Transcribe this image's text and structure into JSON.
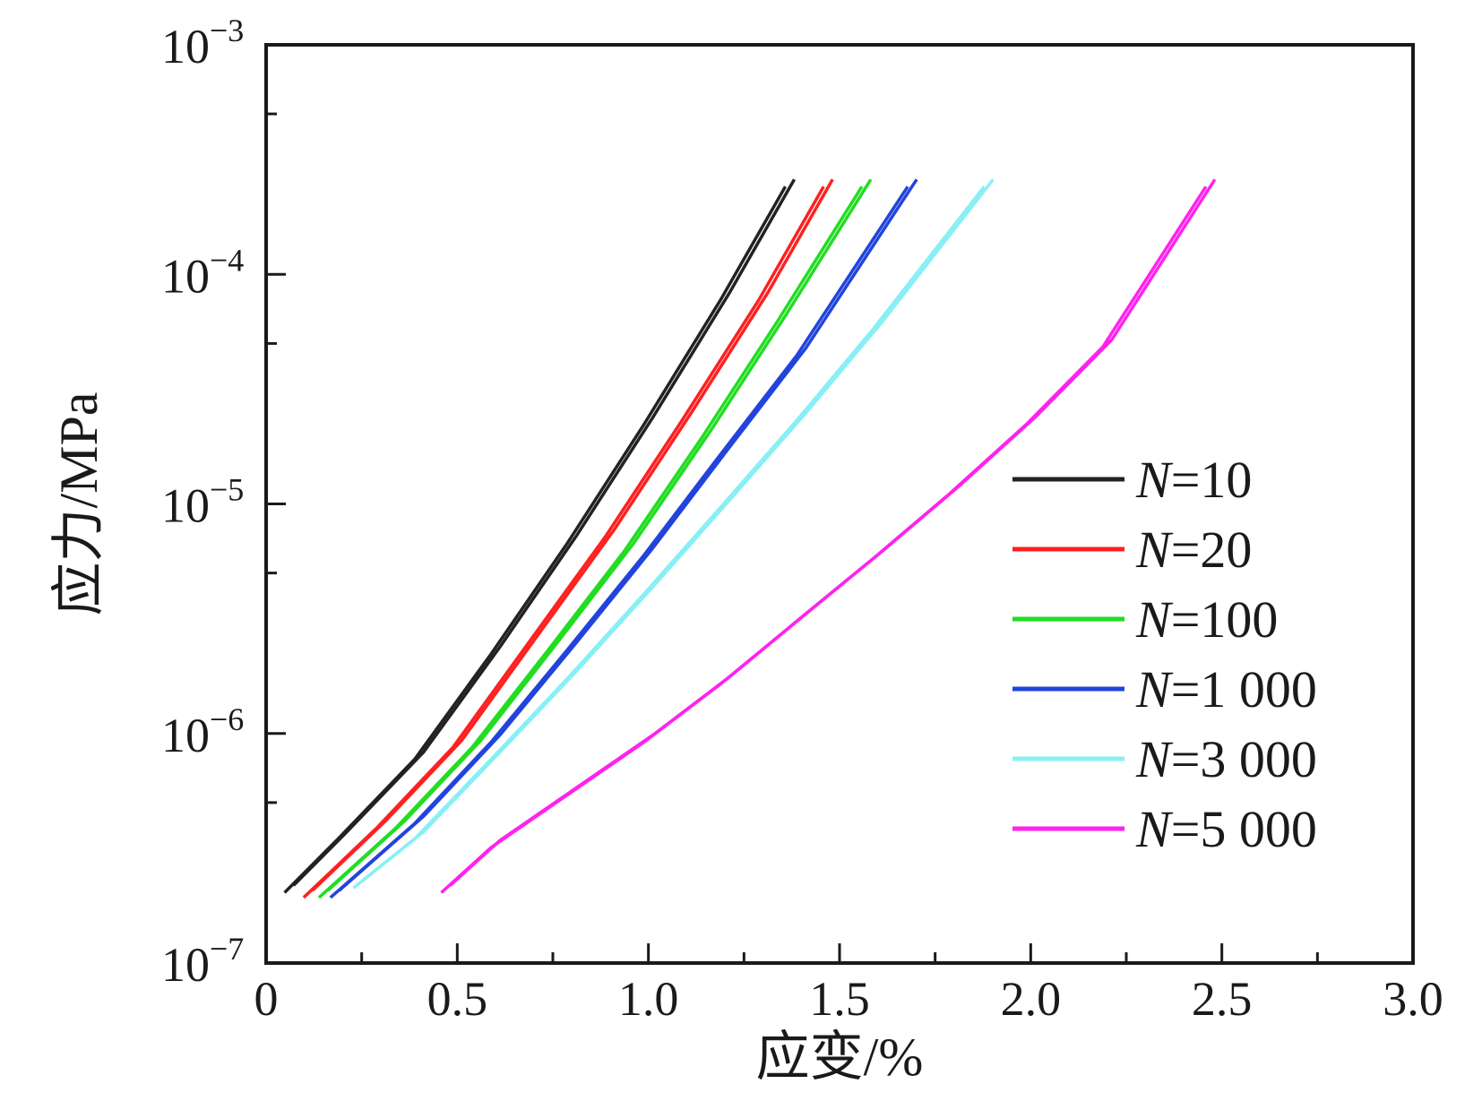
{
  "chart_data": {
    "type": "line",
    "xlabel": "应变/%",
    "ylabel": "应力/MPa",
    "xlim": [
      0,
      3.0
    ],
    "ylim": [
      1e-07,
      0.001
    ],
    "yscale": "log",
    "x_ticks": [
      "0",
      "0.5",
      "1.0",
      "1.5",
      "2.0",
      "2.5",
      "3.0"
    ],
    "y_ticks": [
      {
        "base": "10",
        "exp": "−7"
      },
      {
        "base": "10",
        "exp": "−6"
      },
      {
        "base": "10",
        "exp": "−5"
      },
      {
        "base": "10",
        "exp": "−4"
      },
      {
        "base": "10",
        "exp": "−3"
      }
    ],
    "legend_position": "right-middle",
    "legend_prefix": "N",
    "series": [
      {
        "name": "=10",
        "color": "#222222",
        "x": [
          0.06,
          0.2,
          0.4,
          0.6,
          0.8,
          1.0,
          1.2,
          1.37
        ],
        "y": [
          2.1e-07,
          3.6e-07,
          8e-07,
          2.3e-06,
          7e-06,
          2.3e-05,
          8e-05,
          0.00025
        ]
      },
      {
        "name": "=20",
        "color": "#ff2020",
        "x": [
          0.11,
          0.3,
          0.5,
          0.7,
          0.9,
          1.1,
          1.3,
          1.47
        ],
        "y": [
          2e-07,
          4e-07,
          9e-07,
          2.6e-06,
          7.5e-06,
          2.4e-05,
          8e-05,
          0.00025
        ]
      },
      {
        "name": "=100",
        "color": "#22dd22",
        "x": [
          0.15,
          0.35,
          0.55,
          0.75,
          0.95,
          1.15,
          1.35,
          1.57
        ],
        "y": [
          2e-07,
          4e-07,
          9e-07,
          2.4e-06,
          6.5e-06,
          2e-05,
          6.5e-05,
          0.00025
        ]
      },
      {
        "name": "=1 000",
        "color": "#2244dd",
        "x": [
          0.18,
          0.4,
          0.6,
          0.8,
          1.0,
          1.2,
          1.4,
          1.69
        ],
        "y": [
          2e-07,
          4.2e-07,
          9.5e-07,
          2.4e-06,
          6.2e-06,
          1.7e-05,
          4.6e-05,
          0.00025
        ]
      },
      {
        "name": "=3 000",
        "color": "#88f0f5",
        "x": [
          0.24,
          0.4,
          0.6,
          0.8,
          1.0,
          1.2,
          1.4,
          1.6,
          1.89
        ],
        "y": [
          2.2e-07,
          3.6e-07,
          8e-07,
          1.8e-06,
          4.2e-06,
          1e-05,
          2.4e-05,
          6e-05,
          0.00025
        ]
      },
      {
        "name": "=5 000",
        "color": "#ff22ee",
        "x": [
          0.47,
          0.6,
          0.8,
          1.0,
          1.2,
          1.4,
          1.6,
          1.8,
          2.0,
          2.2,
          2.47
        ],
        "y": [
          2.1e-07,
          3.3e-07,
          5.6e-07,
          9.5e-07,
          1.7e-06,
          3.2e-06,
          6e-06,
          1.15e-05,
          2.3e-05,
          5e-05,
          0.00025
        ]
      }
    ]
  }
}
